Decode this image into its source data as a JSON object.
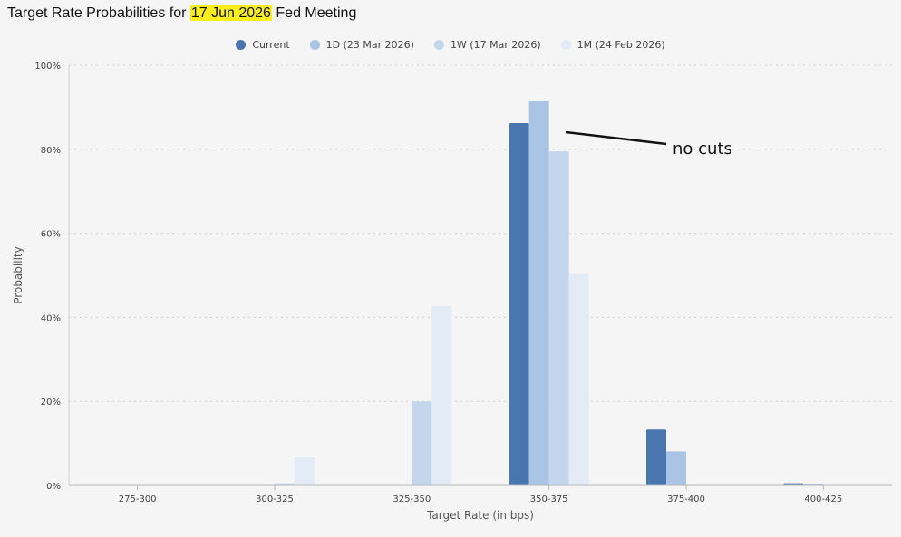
{
  "title": {
    "prefix": "Target Rate Probabilities for ",
    "highlight": "17 Jun 2026",
    "suffix": " Fed Meeting"
  },
  "chart_data": {
    "type": "bar",
    "xlabel": "Target Rate (in bps)",
    "ylabel": "Probability",
    "ylim": [
      0,
      100
    ],
    "ytick_labels": [
      "0%",
      "20%",
      "40%",
      "60%",
      "80%",
      "100%"
    ],
    "ytick_values": [
      0,
      20,
      40,
      60,
      80,
      100
    ],
    "grid": true,
    "legend_position": "top-center",
    "categories": [
      "275-300",
      "300-325",
      "325-350",
      "350-375",
      "375-400",
      "400-425"
    ],
    "series": [
      {
        "name": "Current",
        "color": "#4a76b0",
        "values": [
          0,
          0,
          0,
          86.2,
          13.3,
          0.5
        ]
      },
      {
        "name": "1D (23 Mar 2026)",
        "color": "#a9c4e4",
        "values": [
          0,
          0,
          0,
          91.5,
          8.1,
          0.3
        ]
      },
      {
        "name": "1W (17 Mar 2026)",
        "color": "#c4d6ec",
        "values": [
          0,
          0.5,
          20.0,
          79.5,
          0,
          0
        ]
      },
      {
        "name": "1M (24 Feb 2026)",
        "color": "#e2ebf6",
        "values": [
          0,
          6.7,
          42.7,
          50.3,
          0,
          0
        ]
      }
    ],
    "annotation": {
      "text": "no cuts"
    }
  }
}
